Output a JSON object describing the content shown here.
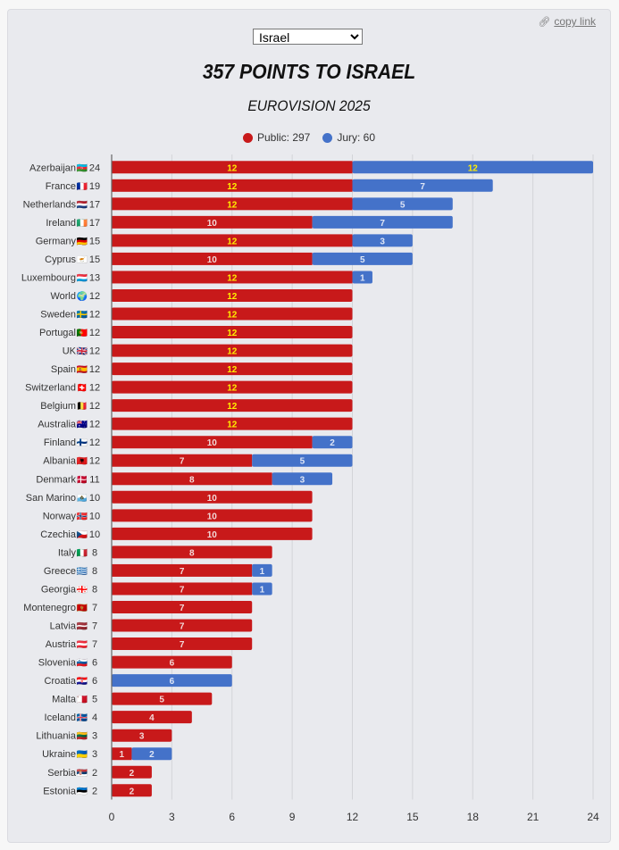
{
  "header": {
    "copy_link_label": "copy link",
    "copy_link_icon": "link-icon",
    "country_select_value": "Israel",
    "title": "357 POINTS TO ISRAEL",
    "subtitle": "EUROVISION 2025"
  },
  "legend": [
    {
      "name": "Public",
      "label": "Public: 297",
      "color": "#c8191a"
    },
    {
      "name": "Jury",
      "label": "Jury: 60",
      "color": "#4472c9"
    }
  ],
  "colors": {
    "public": "#c8191a",
    "jury": "#4472c9",
    "twelve_label": "#ffee00",
    "label": "#f2d9d9",
    "gridline": "#d3d4d8",
    "axis": "#666666"
  },
  "chart_data": {
    "type": "bar",
    "orientation": "horizontal",
    "stacked": true,
    "title": "357 POINTS TO ISRAEL",
    "subtitle": "EUROVISION 2025",
    "xlabel": "",
    "ylabel": "",
    "xlim": [
      0,
      24
    ],
    "x_ticks": [
      0,
      3,
      6,
      9,
      12,
      15,
      18,
      21,
      24
    ],
    "grid": true,
    "legend_position": "top-center",
    "categories": [
      "Azerbaijan",
      "France",
      "Netherlands",
      "Ireland",
      "Germany",
      "Cyprus",
      "Luxembourg",
      "World",
      "Sweden",
      "Portugal",
      "UK",
      "Spain",
      "Switzerland",
      "Belgium",
      "Australia",
      "Finland",
      "Albania",
      "Denmark",
      "San Marino",
      "Norway",
      "Czechia",
      "Italy",
      "Greece",
      "Georgia",
      "Montenegro",
      "Latvia",
      "Austria",
      "Slovenia",
      "Croatia",
      "Malta",
      "Iceland",
      "Lithuania",
      "Ukraine",
      "Serbia",
      "Estonia"
    ],
    "flags": [
      "🇦🇿",
      "🇫🇷",
      "🇳🇱",
      "🇮🇪",
      "🇩🇪",
      "🇨🇾",
      "🇱🇺",
      "🌍",
      "🇸🇪",
      "🇵🇹",
      "🇬🇧",
      "🇪🇸",
      "🇨🇭",
      "🇧🇪",
      "🇦🇺",
      "🇫🇮",
      "🇦🇱",
      "🇩🇰",
      "🇸🇲",
      "🇳🇴",
      "🇨🇿",
      "🇮🇹",
      "🇬🇷",
      "🇬🇪",
      "🇲🇪",
      "🇱🇻",
      "🇦🇹",
      "🇸🇮",
      "🇭🇷",
      "🇲🇹",
      "🇮🇸",
      "🇱🇹",
      "🇺🇦",
      "🇷🇸",
      "🇪🇪"
    ],
    "totals": [
      24,
      19,
      17,
      17,
      15,
      15,
      13,
      12,
      12,
      12,
      12,
      12,
      12,
      12,
      12,
      12,
      12,
      11,
      10,
      10,
      10,
      8,
      8,
      8,
      7,
      7,
      7,
      6,
      6,
      5,
      4,
      3,
      3,
      2,
      2
    ],
    "series": [
      {
        "name": "Public",
        "values": [
          12,
          12,
          12,
          10,
          12,
          10,
          12,
          12,
          12,
          12,
          12,
          12,
          12,
          12,
          12,
          10,
          7,
          8,
          10,
          10,
          10,
          8,
          7,
          7,
          7,
          7,
          7,
          6,
          0,
          5,
          4,
          3,
          1,
          2,
          2
        ]
      },
      {
        "name": "Jury",
        "values": [
          12,
          7,
          5,
          7,
          3,
          5,
          1,
          0,
          0,
          0,
          0,
          0,
          0,
          0,
          0,
          2,
          5,
          3,
          0,
          0,
          0,
          0,
          1,
          1,
          0,
          0,
          0,
          0,
          6,
          0,
          0,
          0,
          2,
          0,
          0
        ]
      }
    ]
  }
}
